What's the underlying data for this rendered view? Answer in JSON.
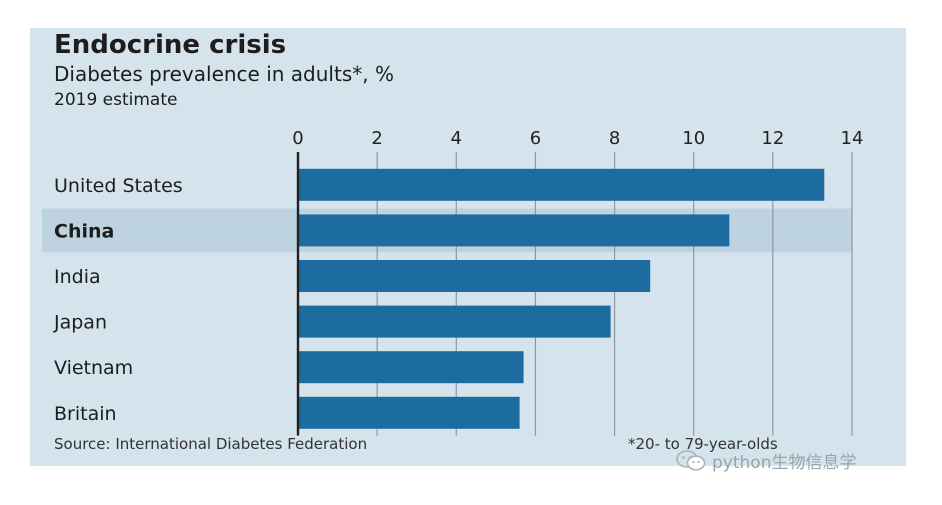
{
  "chart_data": {
    "type": "bar",
    "orientation": "horizontal",
    "title": "Endocrine crisis",
    "subtitle": "Diabetes prevalence in adults*, %",
    "note": "2019 estimate",
    "categories": [
      "United States",
      "China",
      "India",
      "Japan",
      "Vietnam",
      "Britain"
    ],
    "values": [
      13.3,
      10.9,
      8.9,
      7.9,
      5.7,
      5.6
    ],
    "highlighted_category": "China",
    "xlim": [
      0,
      14
    ],
    "xticks": [
      0,
      2,
      4,
      6,
      8,
      10,
      12,
      14
    ],
    "tick_labels": [
      "0",
      "2",
      "4",
      "6",
      "8",
      "10",
      "12",
      "14"
    ],
    "tick_position": "top",
    "grid": true,
    "xlabel": "",
    "ylabel": "",
    "source": "Source: International Diabetes Federation",
    "footnote": "*20- to 79-year-olds"
  },
  "colors": {
    "panel_background": "#d4e3ec",
    "bar": "#1d6ca0",
    "highlight_band": "#bdd3e0",
    "grid": "#8a99a3",
    "axis": "#222222"
  },
  "watermark": {
    "text": "python生物信息学",
    "icon": "wechat-icon"
  }
}
